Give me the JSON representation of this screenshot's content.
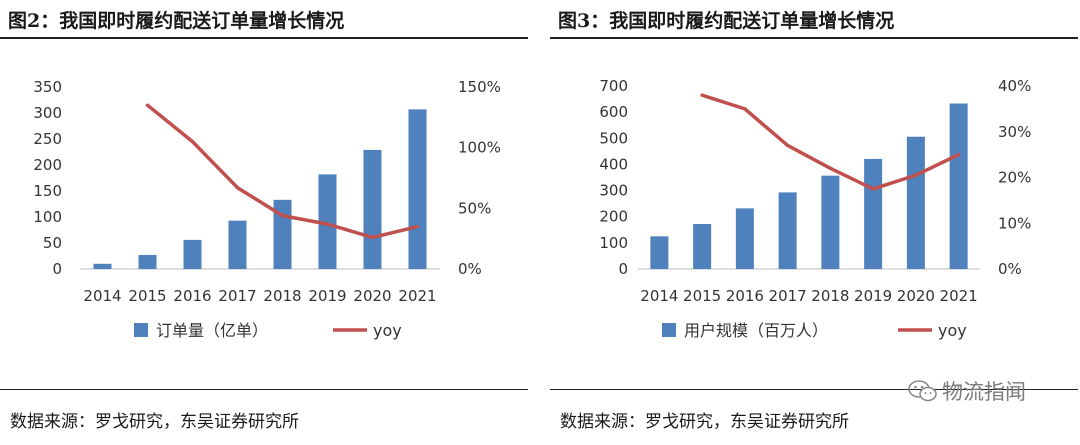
{
  "panels": [
    {
      "title": "图2：我国即时履约配送订单量增长情况",
      "source": "数据来源：罗戈研究，东吴证券研究所"
    },
    {
      "title": "图3：我国即时履约配送订单量增长情况",
      "source": "数据来源：罗戈研究，东吴证券研究所"
    }
  ],
  "watermark": {
    "text": "物流指闻",
    "icon": "wechat-icon"
  },
  "chart_data": [
    {
      "type": "bar",
      "categories": [
        "2014",
        "2015",
        "2016",
        "2017",
        "2018",
        "2019",
        "2020",
        "2021"
      ],
      "series": [
        {
          "name": "订单量（亿单）",
          "type": "bar",
          "axis": "left",
          "color": "#4f81bd",
          "values": [
            10,
            27,
            56,
            93,
            133,
            182,
            229,
            307
          ]
        },
        {
          "name": "yoy",
          "type": "line",
          "axis": "right",
          "color": "#c0504d",
          "values": [
            null,
            1.35,
            1.05,
            0.67,
            0.44,
            0.37,
            0.26,
            0.35
          ]
        }
      ],
      "left_axis": {
        "min": 0,
        "max": 350,
        "ticks": [
          "0",
          "50",
          "100",
          "150",
          "200",
          "250",
          "300",
          "350"
        ]
      },
      "right_axis": {
        "min": 0,
        "max": 1.5,
        "ticks": [
          "0%",
          "50%",
          "100%",
          "150%"
        ]
      },
      "legend": "bottom",
      "grid": false
    },
    {
      "type": "bar",
      "categories": [
        "2014",
        "2015",
        "2016",
        "2017",
        "2018",
        "2019",
        "2020",
        "2021"
      ],
      "series": [
        {
          "name": "用户规模（百万人）",
          "type": "bar",
          "axis": "left",
          "color": "#4f81bd",
          "values": [
            125,
            172,
            232,
            293,
            357,
            421,
            506,
            633
          ]
        },
        {
          "name": "yoy",
          "type": "line",
          "axis": "right",
          "color": "#c0504d",
          "values": [
            null,
            0.38,
            0.35,
            0.27,
            0.22,
            0.175,
            0.205,
            0.25
          ]
        }
      ],
      "left_axis": {
        "min": 0,
        "max": 700,
        "ticks": [
          "0",
          "100",
          "200",
          "300",
          "400",
          "500",
          "600",
          "700"
        ]
      },
      "right_axis": {
        "min": 0,
        "max": 0.4,
        "ticks": [
          "0%",
          "10%",
          "20%",
          "30%",
          "40%"
        ]
      },
      "legend": "bottom",
      "grid": false
    }
  ]
}
